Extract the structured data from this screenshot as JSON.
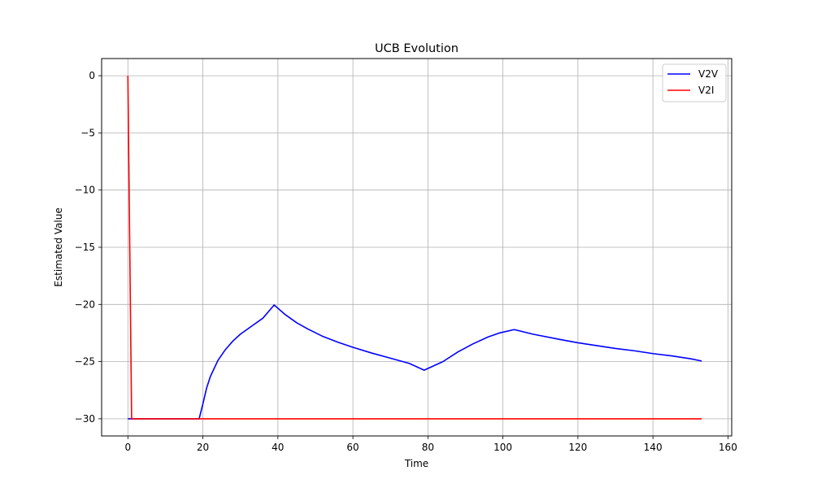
{
  "chart_data": {
    "type": "line",
    "title": "UCB Evolution",
    "xlabel": "Time",
    "ylabel": "Estimated Value",
    "xlim": [
      -7,
      161
    ],
    "ylim": [
      -31.5,
      1.5
    ],
    "xticks": [
      0,
      20,
      40,
      60,
      80,
      100,
      120,
      140,
      160
    ],
    "yticks": [
      0,
      -5,
      -10,
      -15,
      -20,
      -25,
      -30
    ],
    "ytick_labels": [
      "0",
      "−5",
      "−10",
      "−15",
      "−20",
      "−25",
      "−30"
    ],
    "grid": true,
    "legend_position": "top-right",
    "series": [
      {
        "name": "V2V",
        "color": "#0000ff",
        "points": [
          [
            0,
            -30
          ],
          [
            1,
            -30
          ],
          [
            19,
            -30
          ],
          [
            20,
            -28.7
          ],
          [
            21,
            -27.3
          ],
          [
            22,
            -26.3
          ],
          [
            24,
            -24.9
          ],
          [
            26,
            -23.95
          ],
          [
            28,
            -23.2
          ],
          [
            30,
            -22.6
          ],
          [
            33,
            -21.9
          ],
          [
            36,
            -21.2
          ],
          [
            39,
            -20.05
          ],
          [
            42,
            -20.9
          ],
          [
            45,
            -21.6
          ],
          [
            48,
            -22.15
          ],
          [
            52,
            -22.8
          ],
          [
            56,
            -23.3
          ],
          [
            60,
            -23.75
          ],
          [
            65,
            -24.25
          ],
          [
            70,
            -24.7
          ],
          [
            75,
            -25.15
          ],
          [
            79,
            -25.75
          ],
          [
            84,
            -25.0
          ],
          [
            88,
            -24.15
          ],
          [
            92,
            -23.45
          ],
          [
            96,
            -22.85
          ],
          [
            99,
            -22.5
          ],
          [
            103,
            -22.2
          ],
          [
            108,
            -22.6
          ],
          [
            115,
            -23.05
          ],
          [
            120,
            -23.35
          ],
          [
            125,
            -23.6
          ],
          [
            130,
            -23.85
          ],
          [
            135,
            -24.05
          ],
          [
            140,
            -24.3
          ],
          [
            145,
            -24.5
          ],
          [
            150,
            -24.75
          ],
          [
            153,
            -24.95
          ]
        ]
      },
      {
        "name": "V2I",
        "color": "#ff0000",
        "points": [
          [
            0,
            0
          ],
          [
            1,
            -30
          ],
          [
            153,
            -30
          ]
        ]
      }
    ]
  }
}
